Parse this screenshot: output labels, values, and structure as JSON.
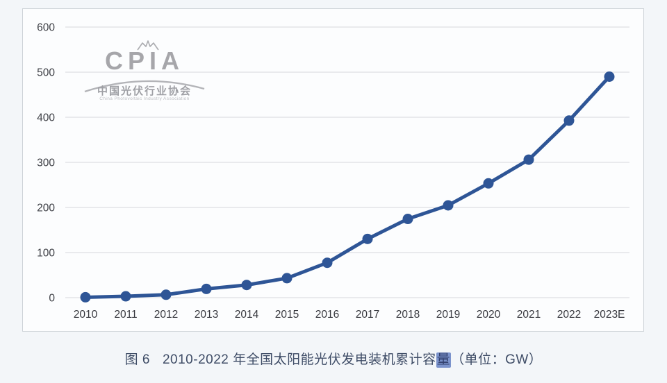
{
  "watermark": {
    "logo_text": "CPIA",
    "org_cn": "中国光伏行业协会",
    "org_en": "China Photovoltaic Industry Association",
    "color": "#a6a6aa"
  },
  "chart_data": {
    "type": "line",
    "title": "2010-2022 年全国太阳能光伏发电装机累计容量",
    "unit": "GW",
    "x": [
      "2010",
      "2011",
      "2012",
      "2013",
      "2014",
      "2015",
      "2016",
      "2017",
      "2018",
      "2019",
      "2020",
      "2021",
      "2022",
      "2023E"
    ],
    "series": [
      {
        "name": "全国太阳能光伏发电装机累计容量",
        "values": [
          0.9,
          3.0,
          6.5,
          19.4,
          28.1,
          43.2,
          77.4,
          130.2,
          174.6,
          204.7,
          253.4,
          306.0,
          392.6,
          490.0
        ]
      }
    ],
    "xlabel": "",
    "ylabel": "",
    "ylim": [
      0,
      600
    ],
    "yticks": [
      0,
      100,
      200,
      300,
      400,
      500,
      600
    ],
    "grid": true,
    "legend_position": "none",
    "line_color": "#2e5596",
    "marker_color": "#2e5596",
    "grid_color": "#dddfe3",
    "tick_color": "#3d3f45"
  },
  "caption": {
    "figure_label": "图 6",
    "title": "2010-2022 年全国太阳能光伏发电装机累计容",
    "highlighted_char": "量",
    "unit_suffix": "（单位：GW）",
    "text_color": "#3e4c66",
    "highlight_bg": "#7b93cc"
  }
}
